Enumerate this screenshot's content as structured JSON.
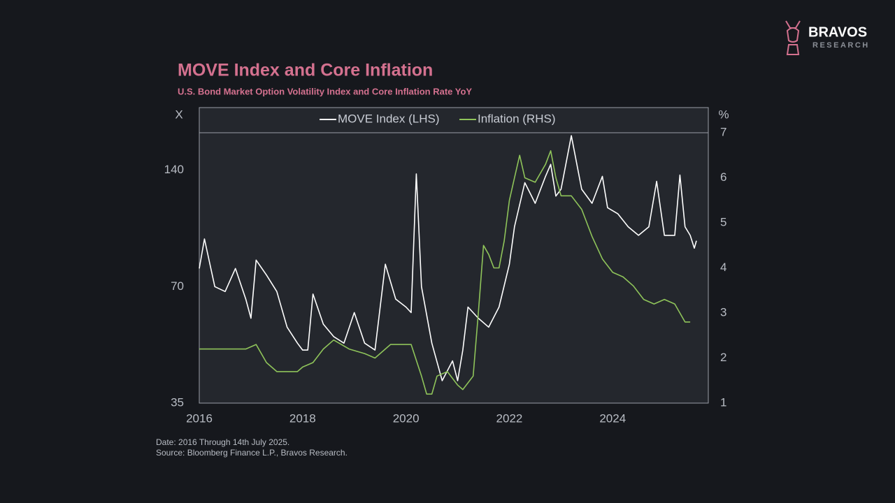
{
  "brand": {
    "name": "BRAVOS",
    "tagline": "RESEARCH"
  },
  "chart_data": {
    "type": "line",
    "title": "MOVE Index and Core Inflation",
    "subtitle": "U.S. Bond Market Option Volatility Index and Core Inflation Rate YoY",
    "ylabel": "X",
    "y2label": "%",
    "notes": [
      "Date: 2016 Through 14th July 2025.",
      "Source: Bloomberg Finance L.P., Bravos Research."
    ],
    "xlim": [
      2016,
      2025.85
    ],
    "xticks": [
      2016,
      2018,
      2020,
      2022,
      2024
    ],
    "ylim": [
      35,
      175
    ],
    "ylog": true,
    "yticks": [
      35,
      70,
      140
    ],
    "y2lim": [
      1,
      7
    ],
    "y2ticks": [
      1,
      2,
      3,
      4,
      5,
      6,
      7
    ],
    "legend": "top",
    "series": [
      {
        "name": "MOVE Index (LHS)",
        "color": "#ffffff",
        "x": [
          2016.0,
          2016.1,
          2016.3,
          2016.5,
          2016.7,
          2016.9,
          2017.0,
          2017.1,
          2017.3,
          2017.5,
          2017.7,
          2017.9,
          2018.0,
          2018.1,
          2018.2,
          2018.4,
          2018.6,
          2018.8,
          2019.0,
          2019.2,
          2019.4,
          2019.6,
          2019.8,
          2020.0,
          2020.1,
          2020.2,
          2020.3,
          2020.5,
          2020.7,
          2020.9,
          2021.0,
          2021.1,
          2021.2,
          2021.4,
          2021.6,
          2021.8,
          2022.0,
          2022.1,
          2022.3,
          2022.5,
          2022.7,
          2022.8,
          2022.9,
          2023.0,
          2023.2,
          2023.4,
          2023.6,
          2023.8,
          2023.9,
          2024.1,
          2024.3,
          2024.5,
          2024.7,
          2024.85,
          2025.0,
          2025.2,
          2025.3,
          2025.4,
          2025.5,
          2025.58,
          2025.62
        ],
        "values": [
          78,
          93,
          70,
          68,
          78,
          65,
          58,
          82,
          75,
          68,
          55,
          50,
          48,
          48,
          67,
          56,
          52,
          50,
          60,
          50,
          48,
          80,
          65,
          62,
          60,
          137,
          70,
          50,
          40,
          45,
          40,
          48,
          62,
          58,
          55,
          62,
          80,
          100,
          130,
          115,
          135,
          145,
          120,
          125,
          172,
          125,
          115,
          135,
          112,
          108,
          100,
          95,
          100,
          131,
          95,
          95,
          136,
          100,
          95,
          88,
          92
        ]
      },
      {
        "name": "Inflation (RHS)",
        "color": "#8fc45a",
        "axis": "y2",
        "x": [
          2016.0,
          2016.3,
          2016.5,
          2016.9,
          2017.1,
          2017.3,
          2017.5,
          2017.9,
          2018.0,
          2018.2,
          2018.4,
          2018.6,
          2018.9,
          2019.2,
          2019.4,
          2019.7,
          2019.9,
          2020.1,
          2020.3,
          2020.4,
          2020.5,
          2020.6,
          2020.8,
          2021.0,
          2021.1,
          2021.3,
          2021.4,
          2021.5,
          2021.6,
          2021.7,
          2021.8,
          2021.9,
          2022.0,
          2022.1,
          2022.2,
          2022.3,
          2022.5,
          2022.7,
          2022.8,
          2022.9,
          2023.0,
          2023.2,
          2023.4,
          2023.6,
          2023.8,
          2024.0,
          2024.2,
          2024.4,
          2024.6,
          2024.8,
          2025.0,
          2025.2,
          2025.4,
          2025.5
        ],
        "values": [
          2.2,
          2.2,
          2.2,
          2.2,
          2.3,
          1.9,
          1.7,
          1.7,
          1.8,
          1.9,
          2.2,
          2.4,
          2.2,
          2.1,
          2.0,
          2.3,
          2.3,
          2.3,
          1.6,
          1.2,
          1.2,
          1.6,
          1.7,
          1.4,
          1.3,
          1.6,
          3.0,
          4.5,
          4.3,
          4.0,
          4.0,
          4.6,
          5.5,
          6.0,
          6.5,
          6.0,
          5.9,
          6.3,
          6.6,
          6.0,
          5.6,
          5.6,
          5.3,
          4.7,
          4.2,
          3.9,
          3.8,
          3.6,
          3.3,
          3.2,
          3.3,
          3.2,
          2.8,
          2.8
        ]
      }
    ]
  }
}
